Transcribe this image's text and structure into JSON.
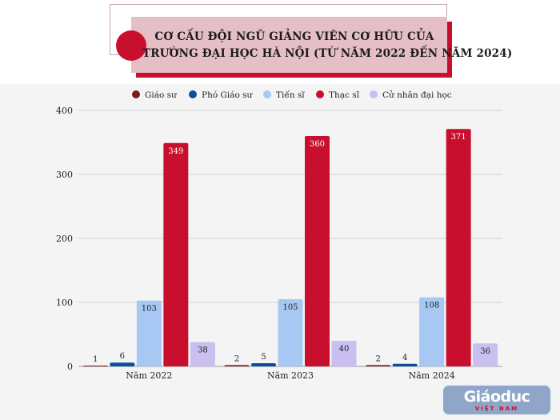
{
  "title_lines": [
    "CƠ CẤU ĐỘI NGŨ GIẢNG VIÊN CƠ HỮU CỦA",
    "TRƯỜNG ĐẠI HỌC HÀ NỘI (TỪ NĂM 2022 ĐẾN NĂM 2024)"
  ],
  "logo": {
    "main": "Giáoduc",
    "sub": "VIỆT NAM"
  },
  "colors": {
    "accent": "#c8102e",
    "title_box": "#e5bfc5",
    "panel": "#f4f4f4"
  },
  "chart_data": {
    "type": "bar",
    "categories": [
      "Năm 2022",
      "Năm 2023",
      "Năm 2024"
    ],
    "series": [
      {
        "name": "Giáo sư",
        "color": "#7a1c1c",
        "values": [
          1,
          2,
          2
        ]
      },
      {
        "name": "Phó Giáo sư",
        "color": "#0b4f9c",
        "values": [
          6,
          5,
          4
        ]
      },
      {
        "name": "Tiến sĩ",
        "color": "#a6c8f2",
        "values": [
          103,
          105,
          108
        ]
      },
      {
        "name": "Thạc sĩ",
        "color": "#c8102e",
        "values": [
          349,
          360,
          371
        ]
      },
      {
        "name": "Cử nhân đại học",
        "color": "#c9bff0",
        "values": [
          38,
          40,
          36
        ]
      }
    ],
    "ylim": [
      0,
      400
    ],
    "yticks": [
      0,
      100,
      200,
      300,
      400
    ],
    "grid": true,
    "legend_position": "top"
  }
}
